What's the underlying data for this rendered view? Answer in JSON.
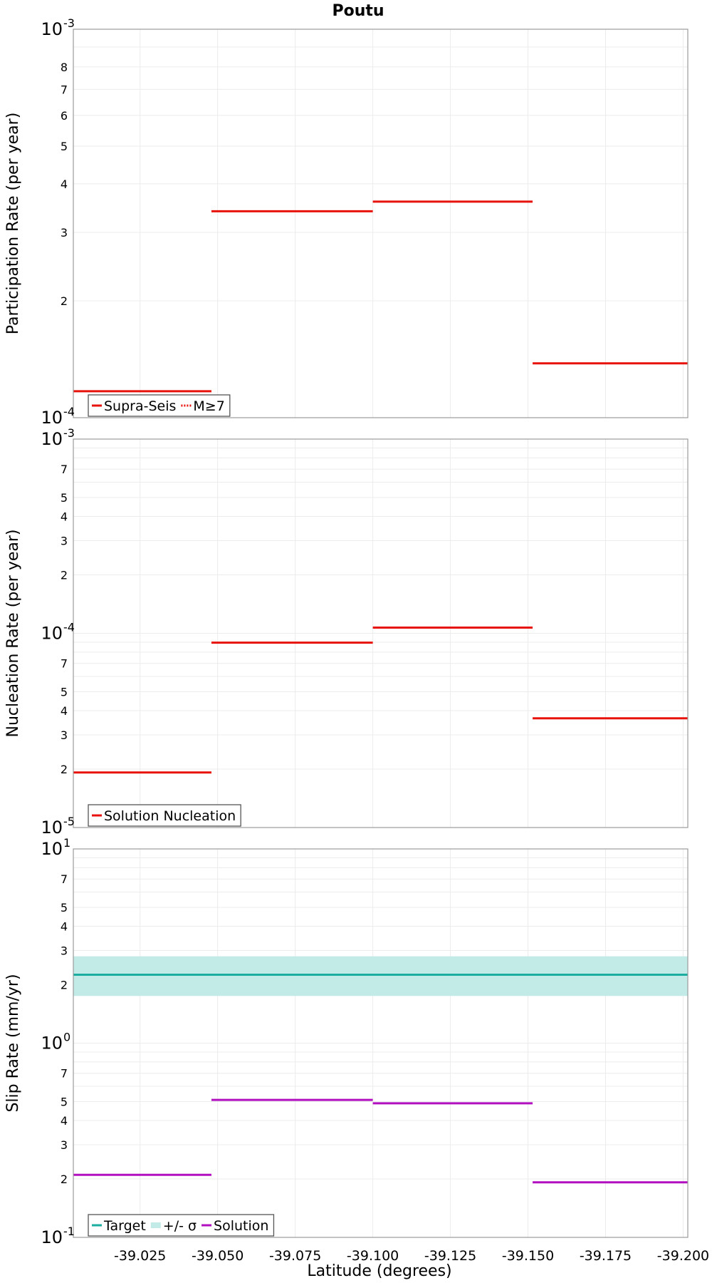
{
  "title": "Poutu",
  "xlabel": "Latitude (degrees)",
  "colors": {
    "supra_seis": "#e8120c",
    "target": "#1aada0",
    "sigma_band": "#c2ebe8",
    "solution_slip": "#b10fbf",
    "grid": "#ececec",
    "frame": "#9b9b9b"
  },
  "x_tick_labels": [
    "-39.025",
    "-39.050",
    "-39.075",
    "-39.100",
    "-39.125",
    "-39.150",
    "-39.175",
    "-39.200"
  ],
  "chart_data": [
    {
      "type": "line",
      "step": true,
      "ylabel": "Participation Rate (per year)",
      "yscale": "log",
      "ylim": [
        0.0001,
        0.001
      ],
      "xlim": [
        -39.0035,
        -39.2015
      ],
      "x_ticks": [
        -39.025,
        -39.05,
        -39.075,
        -39.1,
        -39.125,
        -39.15,
        -39.175,
        -39.2
      ],
      "y_tick_labels": [
        {
          "v": 0.0001,
          "mant": "10",
          "exp": "-4"
        },
        {
          "v": 0.0002,
          "t": "2"
        },
        {
          "v": 0.0003,
          "t": "3"
        },
        {
          "v": 0.0004,
          "t": "4"
        },
        {
          "v": 0.0005,
          "t": "5"
        },
        {
          "v": 0.0006,
          "t": "6"
        },
        {
          "v": 0.0007,
          "t": "7"
        },
        {
          "v": 0.0008,
          "t": "8"
        },
        {
          "v": 0.001,
          "mant": "10",
          "exp": "-3"
        }
      ],
      "series": [
        {
          "name": "Supra-Seis",
          "color_key": "supra_seis",
          "segments": [
            {
              "x0": -39.0035,
              "x1": -39.048,
              "y": 0.000117
            },
            {
              "x0": -39.048,
              "x1": -39.1,
              "y": 0.00034
            },
            {
              "x0": -39.1,
              "x1": -39.1515,
              "y": 0.00036
            },
            {
              "x0": -39.1515,
              "x1": -39.2015,
              "y": 0.000138
            }
          ]
        },
        {
          "name": "M≥7",
          "color_key": "supra_seis",
          "dotted": true,
          "segments": []
        }
      ],
      "legend": {
        "position": "bottom-left"
      }
    },
    {
      "type": "line",
      "step": true,
      "ylabel": "Nucleation Rate (per year)",
      "yscale": "log",
      "ylim": [
        1e-05,
        0.001
      ],
      "xlim": [
        -39.0035,
        -39.2015
      ],
      "x_ticks": [
        -39.025,
        -39.05,
        -39.075,
        -39.1,
        -39.125,
        -39.15,
        -39.175,
        -39.2
      ],
      "y_tick_labels": [
        {
          "v": 1e-05,
          "mant": "10",
          "exp": "-5"
        },
        {
          "v": 2e-05,
          "t": "2"
        },
        {
          "v": 3e-05,
          "t": "3"
        },
        {
          "v": 4e-05,
          "t": "4"
        },
        {
          "v": 5e-05,
          "t": "5"
        },
        {
          "v": 7e-05,
          "t": "7"
        },
        {
          "v": 0.0001,
          "mant": "10",
          "exp": "-4"
        },
        {
          "v": 0.0002,
          "t": "2"
        },
        {
          "v": 0.0003,
          "t": "3"
        },
        {
          "v": 0.0004,
          "t": "4"
        },
        {
          "v": 0.0005,
          "t": "5"
        },
        {
          "v": 0.0007,
          "t": "7"
        },
        {
          "v": 0.001,
          "mant": "10",
          "exp": "-3"
        }
      ],
      "series": [
        {
          "name": "Solution Nucleation",
          "color_key": "supra_seis",
          "segments": [
            {
              "x0": -39.0035,
              "x1": -39.048,
              "y": 1.92e-05
            },
            {
              "x0": -39.048,
              "x1": -39.1,
              "y": 8.95e-05
            },
            {
              "x0": -39.1,
              "x1": -39.1515,
              "y": 0.000107
            },
            {
              "x0": -39.1515,
              "x1": -39.2015,
              "y": 3.65e-05
            }
          ]
        }
      ],
      "legend": {
        "position": "bottom-left"
      }
    },
    {
      "type": "line",
      "step": true,
      "ylabel": "Slip Rate (mm/yr)",
      "yscale": "log",
      "ylim": [
        0.1,
        10
      ],
      "xlim": [
        -39.0035,
        -39.2015
      ],
      "x_ticks": [
        -39.025,
        -39.05,
        -39.075,
        -39.1,
        -39.125,
        -39.15,
        -39.175,
        -39.2
      ],
      "y_tick_labels": [
        {
          "v": 0.1,
          "mant": "10",
          "exp": "-1"
        },
        {
          "v": 0.2,
          "t": "2"
        },
        {
          "v": 0.3,
          "t": "3"
        },
        {
          "v": 0.4,
          "t": "4"
        },
        {
          "v": 0.5,
          "t": "5"
        },
        {
          "v": 0.7,
          "t": "7"
        },
        {
          "v": 1,
          "mant": "10",
          "exp": "0"
        },
        {
          "v": 2,
          "t": "2"
        },
        {
          "v": 3,
          "t": "3"
        },
        {
          "v": 4,
          "t": "4"
        },
        {
          "v": 5,
          "t": "5"
        },
        {
          "v": 7,
          "t": "7"
        },
        {
          "v": 10,
          "mant": "10",
          "exp": "1"
        }
      ],
      "band": {
        "name": "+/- σ",
        "color_key": "sigma_band",
        "x0": -39.0035,
        "x1": -39.2015,
        "y0": 1.75,
        "y1": 2.8
      },
      "series": [
        {
          "name": "Target",
          "color_key": "target",
          "segments": [
            {
              "x0": -39.0035,
              "x1": -39.2015,
              "y": 2.25
            }
          ]
        },
        {
          "name": "Solution",
          "color_key": "solution_slip",
          "segments": [
            {
              "x0": -39.0035,
              "x1": -39.048,
              "y": 0.21
            },
            {
              "x0": -39.048,
              "x1": -39.1,
              "y": 0.51
            },
            {
              "x0": -39.1,
              "x1": -39.1515,
              "y": 0.49
            },
            {
              "x0": -39.1515,
              "x1": -39.2015,
              "y": 0.192
            }
          ]
        }
      ],
      "legend": {
        "position": "bottom-left",
        "order": [
          "Target",
          "+/- σ",
          "Solution"
        ]
      }
    }
  ]
}
